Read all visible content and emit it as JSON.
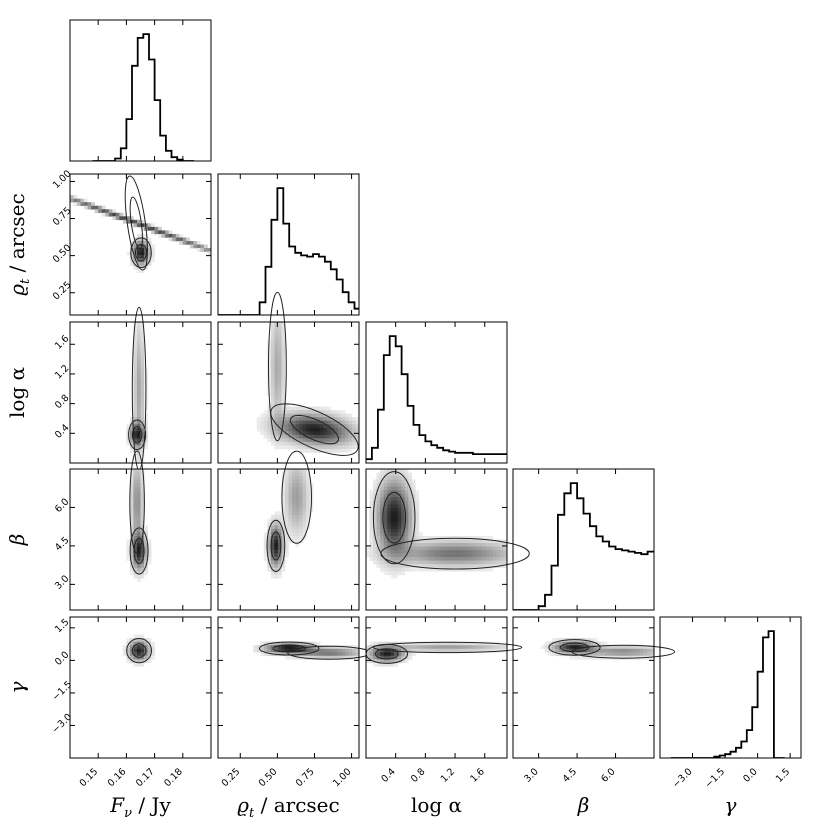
{
  "chart_data": {
    "type": "corner",
    "parameters": [
      {
        "id": "F",
        "label": "F_ν / Jy",
        "range": [
          0.14,
          0.19
        ],
        "ticks": [
          0.15,
          0.16,
          0.17,
          0.18
        ],
        "tick_labels": [
          "0.15",
          "0.16",
          "0.17",
          "0.18"
        ]
      },
      {
        "id": "rho",
        "label": "ϱ_t / arcsec",
        "range": [
          0.1,
          1.05
        ],
        "ticks": [
          0.25,
          0.5,
          0.75,
          1.0
        ],
        "tick_labels": [
          "0.25",
          "0.50",
          "0.75",
          "1.00"
        ]
      },
      {
        "id": "alpha",
        "label": "log α",
        "range": [
          0.0,
          1.9
        ],
        "ticks": [
          0.4,
          0.8,
          1.2,
          1.6
        ],
        "tick_labels": [
          "0.4",
          "0.8",
          "1.2",
          "1.6"
        ]
      },
      {
        "id": "beta",
        "label": "β",
        "range": [
          2.0,
          7.5
        ],
        "ticks": [
          3.0,
          4.5,
          6.0
        ],
        "tick_labels": [
          "3.0",
          "4.5",
          "6.0"
        ]
      },
      {
        "id": "gamma",
        "label": "γ",
        "range": [
          -4.5,
          2.0
        ],
        "ticks": [
          -3.0,
          -1.5,
          0.0,
          1.5
        ],
        "tick_labels": [
          "−3.0",
          "−1.5",
          "0.0",
          "1.5"
        ]
      }
    ],
    "histograms": [
      {
        "param": "F",
        "bins": [
          0.148,
          0.15,
          0.152,
          0.154,
          0.156,
          0.158,
          0.16,
          0.162,
          0.164,
          0.166,
          0.168,
          0.17,
          0.172,
          0.174,
          0.176,
          0.178,
          0.18,
          0.182
        ],
        "counts": [
          0,
          0,
          0,
          0,
          2,
          10,
          33,
          75,
          97,
          100,
          80,
          48,
          20,
          8,
          3,
          1,
          0,
          0
        ]
      },
      {
        "param": "rho",
        "bins": [
          0.1,
          0.14,
          0.18,
          0.22,
          0.26,
          0.3,
          0.34,
          0.38,
          0.42,
          0.46,
          0.5,
          0.54,
          0.58,
          0.62,
          0.66,
          0.7,
          0.74,
          0.78,
          0.82,
          0.86,
          0.9,
          0.94,
          0.98,
          1.02
        ],
        "counts": [
          0,
          0,
          0,
          0,
          0,
          0,
          0,
          10,
          38,
          75,
          100,
          72,
          54,
          49,
          47,
          46,
          48,
          46,
          42,
          36,
          28,
          18,
          10,
          5
        ]
      },
      {
        "param": "alpha",
        "bins": [
          0.0,
          0.08,
          0.16,
          0.24,
          0.32,
          0.4,
          0.48,
          0.56,
          0.64,
          0.72,
          0.8,
          0.88,
          0.96,
          1.04,
          1.12,
          1.2,
          1.28,
          1.36,
          1.44,
          1.52,
          1.6,
          1.68,
          1.76,
          1.84
        ],
        "counts": [
          3,
          12,
          42,
          85,
          100,
          92,
          70,
          45,
          30,
          22,
          17,
          14,
          12,
          10,
          9,
          8,
          8,
          8,
          7,
          7,
          7,
          7,
          7,
          7
        ]
      },
      {
        "param": "beta",
        "bins": [
          2.0,
          2.25,
          2.5,
          2.75,
          3.0,
          3.25,
          3.5,
          3.75,
          4.0,
          4.25,
          4.5,
          4.75,
          5.0,
          5.25,
          5.5,
          5.75,
          6.0,
          6.25,
          6.5,
          6.75,
          7.0,
          7.25
        ],
        "counts": [
          0,
          0,
          0,
          0,
          3,
          12,
          35,
          75,
          92,
          100,
          88,
          76,
          66,
          58,
          54,
          50,
          48,
          47,
          46,
          45,
          44,
          46
        ]
      },
      {
        "param": "gamma",
        "bins": [
          -4.0,
          -3.5,
          -3.0,
          -2.5,
          -2.0,
          -1.75,
          -1.5,
          -1.25,
          -1.0,
          -0.75,
          -0.5,
          -0.25,
          0.0,
          0.25,
          0.5,
          0.75
        ],
        "counts": [
          0,
          0,
          0,
          0,
          1,
          2,
          3,
          5,
          8,
          13,
          22,
          40,
          68,
          95,
          100,
          0
        ]
      }
    ],
    "panels_2d": [
      {
        "x": "F",
        "y": "rho",
        "blobs": [
          {
            "cx": 0.1635,
            "cy": 0.72,
            "sx": 0.0016,
            "sy": 0.16,
            "rot": 8,
            "w": 0.8
          },
          {
            "cx": 0.1652,
            "cy": 0.52,
            "sx": 0.0018,
            "sy": 0.05,
            "rot": 0,
            "w": 1.0
          }
        ]
      },
      {
        "x": "F",
        "y": "alpha",
        "blobs": [
          {
            "cx": 0.1638,
            "cy": 0.38,
            "sx": 0.0015,
            "sy": 0.1,
            "rot": 0,
            "w": 1.0
          },
          {
            "cx": 0.1645,
            "cy": 1.0,
            "sx": 0.0012,
            "sy": 0.55,
            "rot": 0,
            "w": 0.35
          }
        ]
      },
      {
        "x": "F",
        "y": "beta",
        "blobs": [
          {
            "cx": 0.1645,
            "cy": 4.3,
            "sx": 0.0016,
            "sy": 0.45,
            "rot": 0,
            "w": 1.0
          },
          {
            "cx": 0.1638,
            "cy": 6.2,
            "sx": 0.0013,
            "sy": 1.0,
            "rot": 0,
            "w": 0.45
          }
        ]
      },
      {
        "x": "F",
        "y": "gamma",
        "blobs": [
          {
            "cx": 0.1645,
            "cy": 0.45,
            "sx": 0.0022,
            "sy": 0.28,
            "rot": 0,
            "w": 1.0
          }
        ]
      },
      {
        "x": "rho",
        "y": "alpha",
        "blobs": [
          {
            "cx": 0.75,
            "cy": 0.45,
            "sx": 0.16,
            "sy": 0.12,
            "rot": -25,
            "w": 1.0
          },
          {
            "cx": 0.5,
            "cy": 1.3,
            "sx": 0.03,
            "sy": 0.5,
            "rot": 0,
            "w": 0.3
          }
        ]
      },
      {
        "x": "rho",
        "y": "beta",
        "blobs": [
          {
            "cx": 0.49,
            "cy": 4.5,
            "sx": 0.03,
            "sy": 0.5,
            "rot": 0,
            "w": 1.0
          },
          {
            "cx": 0.63,
            "cy": 6.4,
            "sx": 0.05,
            "sy": 0.9,
            "rot": 0,
            "w": 0.35
          }
        ]
      },
      {
        "x": "rho",
        "y": "gamma",
        "blobs": [
          {
            "cx": 0.58,
            "cy": 0.55,
            "sx": 0.1,
            "sy": 0.15,
            "rot": 0,
            "w": 1.0
          },
          {
            "cx": 0.85,
            "cy": 0.35,
            "sx": 0.14,
            "sy": 0.15,
            "rot": 0,
            "w": 0.5
          }
        ]
      },
      {
        "x": "alpha",
        "y": "beta",
        "blobs": [
          {
            "cx": 0.38,
            "cy": 5.6,
            "sx": 0.14,
            "sy": 0.9,
            "rot": 0,
            "w": 1.0
          },
          {
            "cx": 1.2,
            "cy": 4.2,
            "sx": 0.5,
            "sy": 0.3,
            "rot": 0,
            "w": 0.55
          }
        ]
      },
      {
        "x": "alpha",
        "y": "gamma",
        "blobs": [
          {
            "cx": 0.28,
            "cy": 0.3,
            "sx": 0.14,
            "sy": 0.22,
            "rot": 0,
            "w": 1.0
          },
          {
            "cx": 1.1,
            "cy": 0.6,
            "sx": 0.5,
            "sy": 0.12,
            "rot": 0,
            "w": 0.35
          }
        ]
      },
      {
        "x": "beta",
        "y": "gamma",
        "blobs": [
          {
            "cx": 4.4,
            "cy": 0.6,
            "sx": 0.5,
            "sy": 0.18,
            "rot": 0,
            "w": 1.0
          },
          {
            "cx": 6.3,
            "cy": 0.4,
            "sx": 1.0,
            "sy": 0.15,
            "rot": 0,
            "w": 0.45
          }
        ]
      }
    ]
  }
}
